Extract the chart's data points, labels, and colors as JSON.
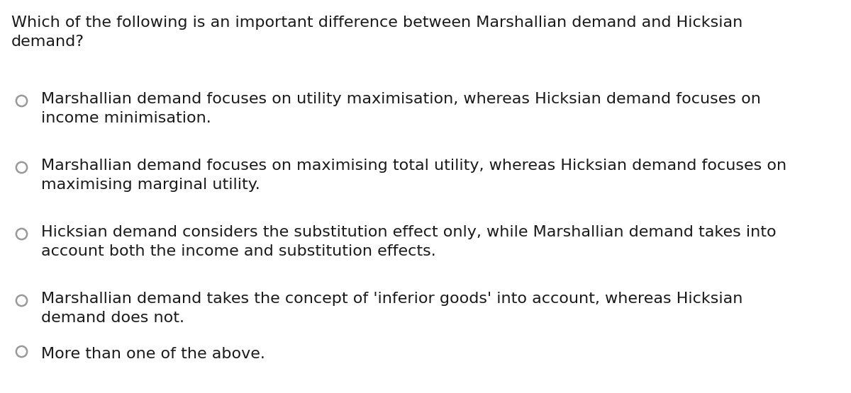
{
  "background_color": "#ffffff",
  "question": "Which of the following is an important difference between Marshallian demand and Hicksian\ndemand?",
  "options": [
    "Marshallian demand focuses on utility maximisation, whereas Hicksian demand focuses on\nincome minimisation.",
    "Marshallian demand focuses on maximising total utility, whereas Hicksian demand focuses on\nmaximising marginal utility.",
    "Hicksian demand considers the substitution effect only, while Marshallian demand takes into\naccount both the income and substitution effects.",
    "Marshallian demand takes the concept of 'inferior goods' into account, whereas Hicksian\ndemand does not.",
    "More than one of the above."
  ],
  "text_color": "#1a1a1a",
  "question_fontsize": 16,
  "option_fontsize": 16,
  "circle_color": "#999999",
  "circle_linewidth": 1.8
}
